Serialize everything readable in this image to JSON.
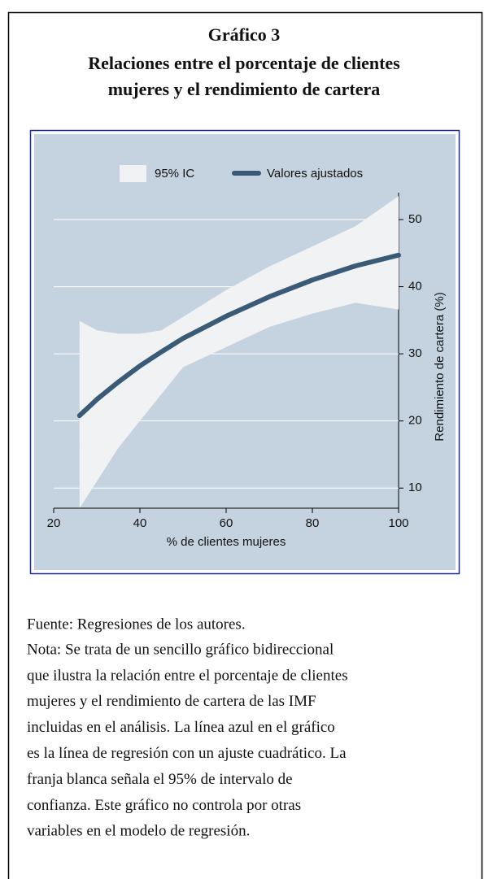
{
  "chart_data": {
    "type": "line",
    "title": [
      "Gráfico 3",
      "Relaciones entre el porcentaje de clientes",
      "mujeres y el rendimiento de cartera"
    ],
    "xlabel": "% de clientes mujeres",
    "ylabel": "Rendimiento de cartera (%)",
    "x": [
      26,
      30,
      35,
      40,
      45,
      50,
      60,
      70,
      80,
      90,
      100
    ],
    "band": {
      "name": "95% IC",
      "color": "#f1f2f3",
      "lower": [
        7,
        11,
        16,
        20,
        24,
        28,
        31,
        34,
        36,
        37.6,
        36.6
      ],
      "upper": [
        34.9,
        33.5,
        33,
        33,
        33.5,
        35.5,
        39.5,
        43,
        46,
        49,
        53.5
      ]
    },
    "series": [
      {
        "name": "Valores ajustados",
        "color": "#3a5b78",
        "values": [
          20.8,
          23.2,
          25.8,
          28.2,
          30.3,
          32.3,
          35.6,
          38.5,
          41,
          43.1,
          44.7
        ]
      }
    ],
    "xlim": [
      20,
      100
    ],
    "xticks": [
      20,
      40,
      60,
      80,
      100
    ],
    "ylim": [
      7,
      54
    ],
    "yticks": [
      10,
      20,
      30,
      40,
      50
    ],
    "grid": true,
    "legend": "top"
  },
  "source": "Fuente: Regresiones de los autores.",
  "note_lines": [
    "Nota: Se trata de un sencillo gráfico bidireccional",
    "que ilustra la relación entre el porcentaje de clientes",
    "mujeres y el rendimiento de cartera de las IMF",
    "incluidas en el análisis. La línea azul en el gráfico",
    "es la línea de regresión con un ajuste cuadrático. La",
    "franja blanca señala el 95% de intervalo de",
    "confianza. Este gráfico no controla por otras",
    "variables en el modelo de regresión."
  ]
}
